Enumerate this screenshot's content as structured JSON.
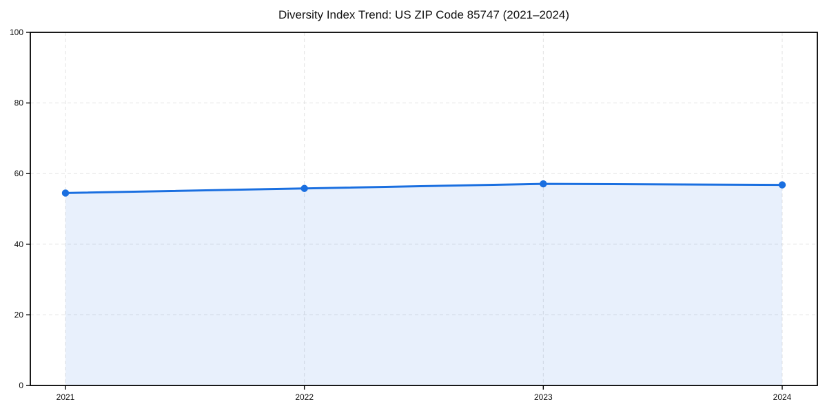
{
  "chart_data": {
    "type": "area",
    "title": "Diversity Index Trend: US ZIP Code 85747 (2021–2024)",
    "xlabel": "",
    "ylabel": "",
    "categories": [
      "2021",
      "2022",
      "2023",
      "2024"
    ],
    "series": [
      {
        "name": "Diversity Index",
        "values": [
          54.5,
          55.8,
          57.1,
          56.8
        ]
      }
    ],
    "ylim": [
      0,
      100
    ],
    "yticks": [
      0,
      20,
      40,
      60,
      80,
      100
    ],
    "grid": "on",
    "grid_style": "dashed",
    "legend_position": "none",
    "colors": {
      "line": "#1a6fe0",
      "marker": "#1a6fe0",
      "area_fill": "rgba(26, 111, 224, 0.10)",
      "grid": "#e2e2e2",
      "axis": "#000000",
      "text": "#111111",
      "background": "#ffffff"
    }
  }
}
